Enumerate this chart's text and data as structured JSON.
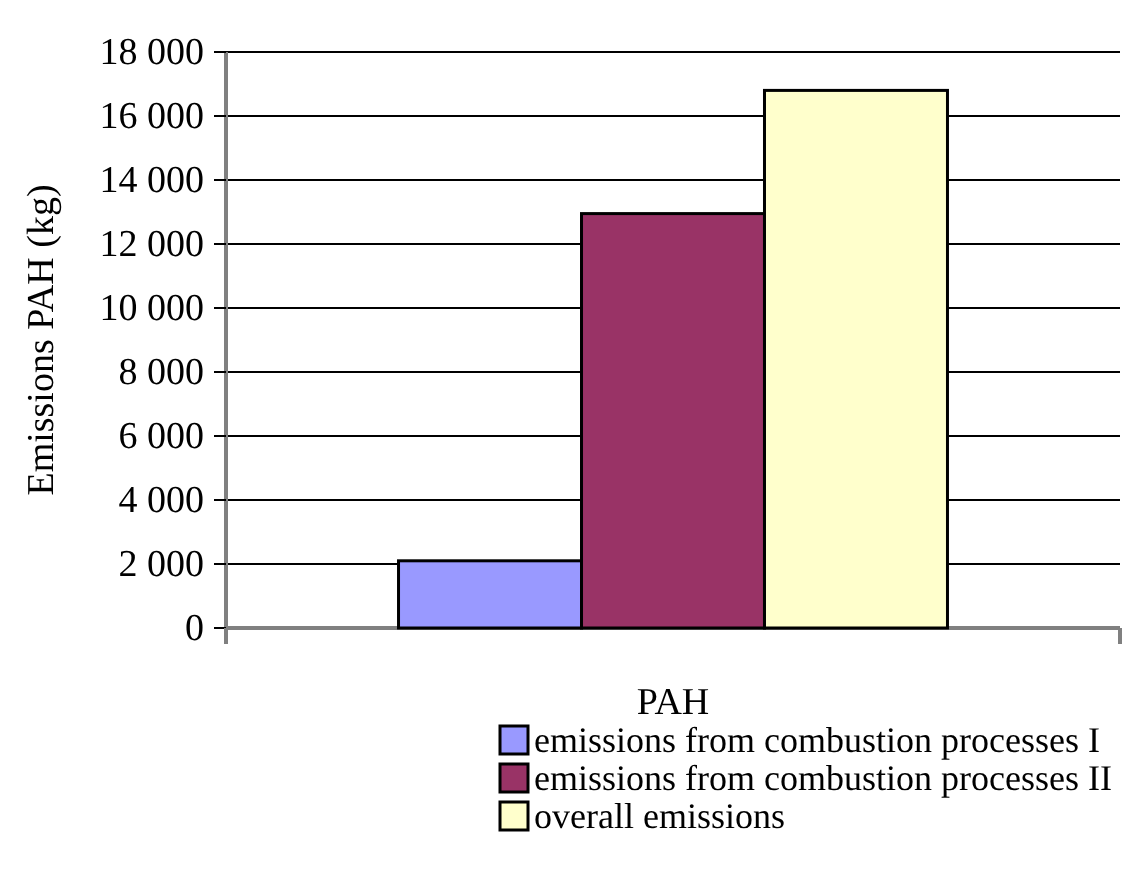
{
  "chart_data": {
    "type": "bar",
    "ylabel": "Emissions PAH (kg)",
    "categories": [
      "PAH"
    ],
    "series": [
      {
        "name": "emissions from combustion processes I",
        "color": "#9999ff",
        "values": [
          2100
        ]
      },
      {
        "name": "emissions from combustion processes II",
        "color": "#993366",
        "values": [
          12950
        ]
      },
      {
        "name": "overall emissions",
        "color": "#ffffcc",
        "values": [
          16800
        ]
      }
    ],
    "ylim": [
      0,
      18000
    ],
    "yticks": [
      0,
      {
        "value": 2000,
        "label": "2 000"
      },
      {
        "value": 4000,
        "label": "4 000"
      },
      {
        "value": 6000,
        "label": "6 000"
      },
      {
        "value": 8000,
        "label": "8 000"
      },
      {
        "value": 10000,
        "label": "10 000"
      },
      {
        "value": 12000,
        "label": "12 000"
      },
      {
        "value": 14000,
        "label": "14 000"
      },
      {
        "value": 16000,
        "label": "16 000"
      },
      {
        "value": 18000,
        "label": "18 000"
      }
    ],
    "grid": "y",
    "legend": "bottom"
  }
}
